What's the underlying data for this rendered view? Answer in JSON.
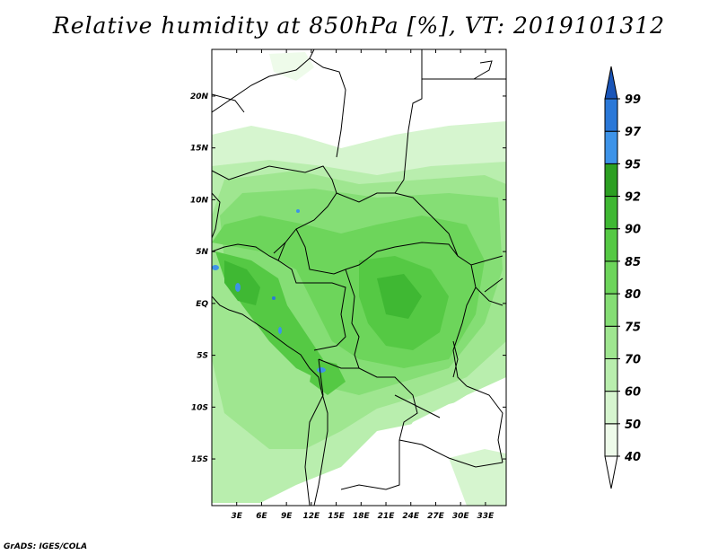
{
  "title": "Relative humidity at 850hPa [%], VT: 2019101312",
  "credit": "GrADS: IGES/COLA",
  "map": {
    "lon_range": [
      0,
      35.5
    ],
    "lat_range": [
      -19.5,
      24.5
    ],
    "x_ticks": [
      {
        "value": 3,
        "label": "3E"
      },
      {
        "value": 6,
        "label": "6E"
      },
      {
        "value": 9,
        "label": "9E"
      },
      {
        "value": 12,
        "label": "12E"
      },
      {
        "value": 15,
        "label": "15E"
      },
      {
        "value": 18,
        "label": "18E"
      },
      {
        "value": 21,
        "label": "21E"
      },
      {
        "value": 24,
        "label": "24E"
      },
      {
        "value": 27,
        "label": "27E"
      },
      {
        "value": 30,
        "label": "30E"
      },
      {
        "value": 33,
        "label": "33E"
      }
    ],
    "y_ticks": [
      {
        "value": 20,
        "label": "20N"
      },
      {
        "value": 15,
        "label": "15N"
      },
      {
        "value": 10,
        "label": "10N"
      },
      {
        "value": 5,
        "label": "5N"
      },
      {
        "value": 0,
        "label": "EQ"
      },
      {
        "value": -5,
        "label": "5S"
      },
      {
        "value": -10,
        "label": "10S"
      },
      {
        "value": -15,
        "label": "15S"
      }
    ]
  },
  "colorbar": {
    "levels": [
      "40",
      "50",
      "60",
      "70",
      "75",
      "80",
      "85",
      "90",
      "92",
      "95",
      "97",
      "99"
    ],
    "colors": [
      "#eefbea",
      "#d6f5cf",
      "#b9eeae",
      "#9fe690",
      "#85de75",
      "#6dd55b",
      "#55c944",
      "#3fb833",
      "#2c9f22",
      "#3d93e8",
      "#2a78d8",
      "#1a5dc2"
    ],
    "low_end_color": "#ffffff",
    "high_end_color": "#1a55b8"
  }
}
